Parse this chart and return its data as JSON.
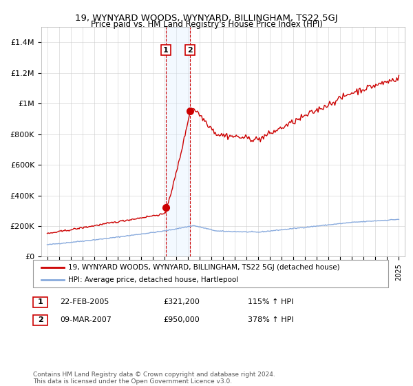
{
  "title": "19, WYNYARD WOODS, WYNYARD, BILLINGHAM, TS22 5GJ",
  "subtitle": "Price paid vs. HM Land Registry's House Price Index (HPI)",
  "legend_line1": "19, WYNYARD WOODS, WYNYARD, BILLINGHAM, TS22 5GJ (detached house)",
  "legend_line2": "HPI: Average price, detached house, Hartlepool",
  "transaction1_date": "22-FEB-2005",
  "transaction1_price": "£321,200",
  "transaction1_hpi": "115% ↑ HPI",
  "transaction2_date": "09-MAR-2007",
  "transaction2_price": "£950,000",
  "transaction2_hpi": "378% ↑ HPI",
  "footer": "Contains HM Land Registry data © Crown copyright and database right 2024.\nThis data is licensed under the Open Government Licence v3.0.",
  "property_color": "#cc0000",
  "hpi_color": "#88aadd",
  "highlight_color": "#ddeeff",
  "highlight_edge_color": "#cc0000",
  "transaction1_x": 2005.13,
  "transaction2_x": 2007.19,
  "ylim_min": 0,
  "ylim_max": 1500000,
  "yticks": [
    0,
    200000,
    400000,
    600000,
    800000,
    1000000,
    1200000,
    1400000
  ],
  "ytick_labels": [
    "£0",
    "£200K",
    "£400K",
    "£600K",
    "£800K",
    "£1M",
    "£1.2M",
    "£1.4M"
  ],
  "xmin": 1994.5,
  "xmax": 2025.5
}
